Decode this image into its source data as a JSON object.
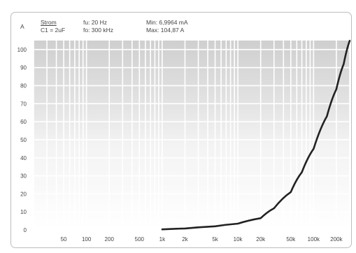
{
  "header": {
    "unit": "A",
    "legend_title": "Strom",
    "legend_sub": "C1 = 2uF",
    "fu": "fu: 20 Hz",
    "fo": "fo: 300 kHz",
    "min": "Min: 6,9964 mA",
    "max": "Max: 104,87 A"
  },
  "chart_data": {
    "type": "line",
    "title": "",
    "xlabel": "",
    "ylabel": "A",
    "x_scale": "log",
    "xlim": [
      20,
      300000
    ],
    "ylim": [
      0,
      105
    ],
    "grid": true,
    "y_ticks": [
      0,
      10,
      20,
      30,
      40,
      50,
      60,
      70,
      80,
      90,
      100
    ],
    "x_ticks": [
      {
        "value": 50,
        "label": "50"
      },
      {
        "value": 100,
        "label": "100"
      },
      {
        "value": 200,
        "label": "200"
      },
      {
        "value": 500,
        "label": "500"
      },
      {
        "value": 1000,
        "label": "1k"
      },
      {
        "value": 2000,
        "label": "2k"
      },
      {
        "value": 5000,
        "label": "5k"
      },
      {
        "value": 10000,
        "label": "10k"
      },
      {
        "value": 20000,
        "label": "20k"
      },
      {
        "value": 50000,
        "label": "50k"
      },
      {
        "value": 100000,
        "label": "100k"
      },
      {
        "value": 200000,
        "label": "200k"
      }
    ],
    "series": [
      {
        "color": "#222222",
        "x": [
          1000,
          2000,
          5000,
          10000,
          20000,
          30000,
          50000,
          70000,
          100000,
          150000,
          200000,
          250000,
          300000
        ],
        "y": [
          0.3,
          0.8,
          2,
          3.5,
          6.5,
          12,
          21,
          32,
          45,
          63,
          78,
          92,
          104.87
        ]
      }
    ]
  }
}
